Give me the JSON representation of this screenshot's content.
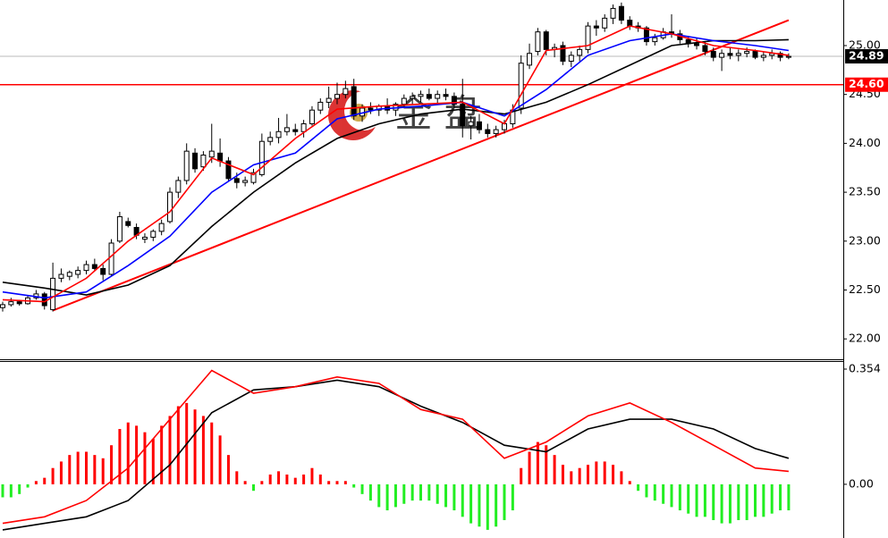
{
  "chart_data": [
    {
      "type": "candlestick",
      "watermark": "金 盘",
      "ylim": [
        21.81,
        25.466
      ],
      "yticks": [
        {
          "value": 22,
          "label": "22.00"
        },
        {
          "value": 22.5,
          "label": "22.50"
        },
        {
          "value": 23,
          "label": "23.00"
        },
        {
          "value": 23.5,
          "label": "23.50"
        },
        {
          "value": 24,
          "label": "24.00"
        },
        {
          "value": 24.5,
          "label": "24.50"
        },
        {
          "value": 25,
          "label": "25.00"
        }
      ],
      "up_color": "#ffffff",
      "down_color": "#000000",
      "hlines": [
        {
          "value": 24.6,
          "label": "24.60",
          "color": "#ff0000"
        }
      ],
      "last": {
        "value": 24.89,
        "label": "24.89",
        "color": "#000000"
      },
      "trendline": {
        "color": "#ff0000",
        "x": [
          6,
          94
        ],
        "values": [
          22.29,
          25.26
        ]
      },
      "ohlc": [
        [
          22.32,
          22.38,
          22.28,
          22.35
        ],
        [
          22.35,
          22.42,
          22.33,
          22.38
        ],
        [
          22.38,
          22.4,
          22.34,
          22.36
        ],
        [
          22.36,
          22.45,
          22.35,
          22.42
        ],
        [
          22.42,
          22.5,
          22.4,
          22.46
        ],
        [
          22.46,
          22.48,
          22.3,
          22.34
        ],
        [
          22.3,
          22.78,
          22.28,
          22.62
        ],
        [
          22.62,
          22.72,
          22.58,
          22.66
        ],
        [
          22.64,
          22.7,
          22.6,
          22.68
        ],
        [
          22.66,
          22.74,
          22.62,
          22.7
        ],
        [
          22.7,
          22.8,
          22.66,
          22.76
        ],
        [
          22.76,
          22.82,
          22.7,
          22.72
        ],
        [
          22.72,
          22.76,
          22.6,
          22.66
        ],
        [
          22.66,
          23.02,
          22.64,
          22.98
        ],
        [
          23,
          23.3,
          22.98,
          23.25
        ],
        [
          23.2,
          23.24,
          23.14,
          23.16
        ],
        [
          23.14,
          23.18,
          23.02,
          23.06
        ],
        [
          23.02,
          23.08,
          22.98,
          23.04
        ],
        [
          23.04,
          23.12,
          23,
          23.1
        ],
        [
          23.1,
          23.22,
          23.06,
          23.18
        ],
        [
          23.2,
          23.55,
          23.18,
          23.5
        ],
        [
          23.5,
          23.66,
          23.44,
          23.62
        ],
        [
          23.62,
          24,
          23.58,
          23.92
        ],
        [
          23.9,
          23.95,
          23.7,
          23.74
        ],
        [
          23.76,
          23.92,
          23.72,
          23.88
        ],
        [
          23.86,
          24.2,
          23.8,
          23.92
        ],
        [
          23.9,
          24.05,
          23.76,
          23.82
        ],
        [
          23.82,
          23.86,
          23.62,
          23.64
        ],
        [
          23.64,
          23.7,
          23.54,
          23.6
        ],
        [
          23.6,
          23.66,
          23.56,
          23.62
        ],
        [
          23.6,
          23.74,
          23.58,
          23.7
        ],
        [
          23.68,
          24.1,
          23.66,
          24.02
        ],
        [
          24.02,
          24.12,
          23.98,
          24.06
        ],
        [
          24.06,
          24.26,
          24,
          24.12
        ],
        [
          24.12,
          24.3,
          24.08,
          24.16
        ],
        [
          24.14,
          24.2,
          24.08,
          24.12
        ],
        [
          24.12,
          24.24,
          24.06,
          24.2
        ],
        [
          24.2,
          24.38,
          24.18,
          24.34
        ],
        [
          24.34,
          24.46,
          24.3,
          24.42
        ],
        [
          24.42,
          24.58,
          24.36,
          24.46
        ],
        [
          24.46,
          24.62,
          24.4,
          24.5
        ],
        [
          24.5,
          24.64,
          24.46,
          24.56
        ],
        [
          24.58,
          24.66,
          24.24,
          24.28
        ],
        [
          24.28,
          24.4,
          24.22,
          24.36
        ],
        [
          24.36,
          24.42,
          24.3,
          24.34
        ],
        [
          24.34,
          24.4,
          24.28,
          24.38
        ],
        [
          24.38,
          24.46,
          24.3,
          24.34
        ],
        [
          24.34,
          24.42,
          24.28,
          24.4
        ],
        [
          24.4,
          24.5,
          24.36,
          24.46
        ],
        [
          24.46,
          24.52,
          24.4,
          24.48
        ],
        [
          24.48,
          24.54,
          24.42,
          24.5
        ],
        [
          24.5,
          24.56,
          24.44,
          24.46
        ],
        [
          24.46,
          24.54,
          24.4,
          24.5
        ],
        [
          24.5,
          24.56,
          24.44,
          24.48
        ],
        [
          24.48,
          24.52,
          24.36,
          24.4
        ],
        [
          24.4,
          24.66,
          24.06,
          24.18
        ],
        [
          24.18,
          24.28,
          24.04,
          24.22
        ],
        [
          24.22,
          24.3,
          24.1,
          24.14
        ],
        [
          24.14,
          24.2,
          24.06,
          24.1
        ],
        [
          24.1,
          24.18,
          24.06,
          24.14
        ],
        [
          24.14,
          24.24,
          24.1,
          24.2
        ],
        [
          24.2,
          24.4,
          24.16,
          24.34
        ],
        [
          24.36,
          24.9,
          24.3,
          24.82
        ],
        [
          24.8,
          25.02,
          24.76,
          24.92
        ],
        [
          24.94,
          25.18,
          24.9,
          25.14
        ],
        [
          25.14,
          25.16,
          24.9,
          24.96
        ],
        [
          24.96,
          25.02,
          24.88,
          24.98
        ],
        [
          25,
          25.04,
          24.8,
          24.84
        ],
        [
          24.84,
          24.94,
          24.78,
          24.9
        ],
        [
          24.9,
          25,
          24.84,
          24.96
        ],
        [
          24.96,
          25.24,
          24.92,
          25.2
        ],
        [
          25.2,
          25.26,
          25.1,
          25.18
        ],
        [
          25.18,
          25.32,
          25.14,
          25.28
        ],
        [
          25.28,
          25.42,
          25.22,
          25.38
        ],
        [
          25.4,
          25.44,
          25.22,
          25.26
        ],
        [
          25.26,
          25.3,
          25.16,
          25.2
        ],
        [
          25.2,
          25.24,
          25.14,
          25.18
        ],
        [
          25.18,
          25.2,
          25,
          25.04
        ],
        [
          25.04,
          25.12,
          25,
          25.08
        ],
        [
          25.08,
          25.18,
          25.06,
          25.14
        ],
        [
          25.14,
          25.32,
          25.08,
          25.12
        ],
        [
          25.12,
          25.16,
          25.02,
          25.06
        ],
        [
          25.06,
          25.1,
          24.98,
          25.02
        ],
        [
          25.02,
          25.08,
          24.96,
          25
        ],
        [
          25,
          25.04,
          24.9,
          24.94
        ],
        [
          24.94,
          24.98,
          24.84,
          24.88
        ],
        [
          24.88,
          24.96,
          24.74,
          24.92
        ],
        [
          24.92,
          24.98,
          24.86,
          24.9
        ],
        [
          24.9,
          24.96,
          24.84,
          24.92
        ],
        [
          24.92,
          24.98,
          24.88,
          24.94
        ],
        [
          24.94,
          24.96,
          24.86,
          24.88
        ],
        [
          24.88,
          24.94,
          24.84,
          24.9
        ],
        [
          24.9,
          24.96,
          24.86,
          24.92
        ],
        [
          24.92,
          24.94,
          24.84,
          24.88
        ],
        [
          24.88,
          24.92,
          24.86,
          24.89
        ]
      ],
      "lines": [
        {
          "color": "#000000",
          "x": [
            0,
            5,
            10,
            15,
            20,
            25,
            30,
            35,
            40,
            45,
            50,
            55,
            60,
            65,
            70,
            75,
            80,
            85,
            90,
            94
          ],
          "values": [
            22.58,
            22.52,
            22.45,
            22.55,
            22.75,
            23.15,
            23.5,
            23.8,
            24.05,
            24.2,
            24.3,
            24.35,
            24.3,
            24.42,
            24.6,
            24.8,
            25,
            25.05,
            25.05,
            25.06
          ]
        },
        {
          "color": "#0000ff",
          "x": [
            0,
            5,
            10,
            15,
            20,
            25,
            30,
            35,
            40,
            45,
            50,
            55,
            60,
            65,
            70,
            75,
            80,
            85,
            90,
            94
          ],
          "values": [
            22.48,
            22.42,
            22.48,
            22.75,
            23.05,
            23.5,
            23.78,
            23.9,
            24.25,
            24.35,
            24.38,
            24.42,
            24.28,
            24.55,
            24.9,
            25.05,
            25.12,
            25.05,
            25,
            24.95
          ]
        },
        {
          "color": "#ff0000",
          "x": [
            0,
            5,
            10,
            15,
            20,
            25,
            30,
            35,
            40,
            45,
            50,
            55,
            60,
            65,
            70,
            75,
            80,
            85,
            90,
            94
          ],
          "values": [
            22.4,
            22.38,
            22.62,
            23,
            23.3,
            23.85,
            23.68,
            24.05,
            24.35,
            24.38,
            24.4,
            24.42,
            24.2,
            24.95,
            25,
            25.2,
            25.12,
            25,
            24.95,
            24.9
          ]
        }
      ]
    },
    {
      "type": "macd",
      "ylim": [
        -0.165,
        0.376
      ],
      "yticks": [
        0.354,
        {
          "value": 0,
          "label": "0.00"
        }
      ],
      "up_color": "#ff0000",
      "down_color": "#22ee22",
      "values": [
        -0.04,
        -0.04,
        -0.03,
        -0.01,
        0.01,
        0.02,
        0.05,
        0.07,
        0.09,
        0.1,
        0.1,
        0.09,
        0.08,
        0.12,
        0.17,
        0.19,
        0.18,
        0.16,
        0.14,
        0.18,
        0.21,
        0.24,
        0.25,
        0.23,
        0.21,
        0.19,
        0.15,
        0.09,
        0.04,
        0.01,
        -0.02,
        0.01,
        0.03,
        0.04,
        0.03,
        0.02,
        0.03,
        0.05,
        0.03,
        0.01,
        0.01,
        0.01,
        -0.01,
        -0.03,
        -0.05,
        -0.07,
        -0.08,
        -0.07,
        -0.06,
        -0.05,
        -0.05,
        -0.05,
        -0.06,
        -0.07,
        -0.08,
        -0.1,
        -0.12,
        -0.13,
        -0.14,
        -0.13,
        -0.11,
        -0.08,
        0.05,
        0.1,
        0.13,
        0.12,
        0.09,
        0.06,
        0.04,
        0.05,
        0.06,
        0.07,
        0.07,
        0.06,
        0.04,
        0.01,
        -0.02,
        -0.04,
        -0.05,
        -0.06,
        -0.07,
        -0.08,
        -0.09,
        -0.1,
        -0.1,
        -0.11,
        -0.12,
        -0.12,
        -0.11,
        -0.11,
        -0.1,
        -0.1,
        -0.09,
        -0.08,
        -0.08
      ],
      "lines": [
        {
          "color": "#000000",
          "x": [
            0,
            5,
            10,
            15,
            20,
            25,
            30,
            35,
            40,
            45,
            50,
            55,
            60,
            65,
            70,
            75,
            80,
            85,
            90,
            94
          ],
          "values": [
            -0.14,
            -0.12,
            -0.1,
            -0.05,
            0.06,
            0.22,
            0.29,
            0.3,
            0.32,
            0.3,
            0.24,
            0.19,
            0.12,
            0.1,
            0.17,
            0.2,
            0.2,
            0.17,
            0.11,
            0.08
          ]
        },
        {
          "color": "#ff0000",
          "x": [
            0,
            5,
            10,
            15,
            20,
            25,
            30,
            35,
            40,
            45,
            50,
            55,
            60,
            65,
            70,
            75,
            80,
            85,
            90,
            94
          ],
          "values": [
            -0.12,
            -0.1,
            -0.05,
            0.05,
            0.2,
            0.35,
            0.28,
            0.3,
            0.33,
            0.31,
            0.23,
            0.2,
            0.08,
            0.13,
            0.21,
            0.25,
            0.19,
            0.12,
            0.05,
            0.04
          ]
        }
      ]
    }
  ]
}
